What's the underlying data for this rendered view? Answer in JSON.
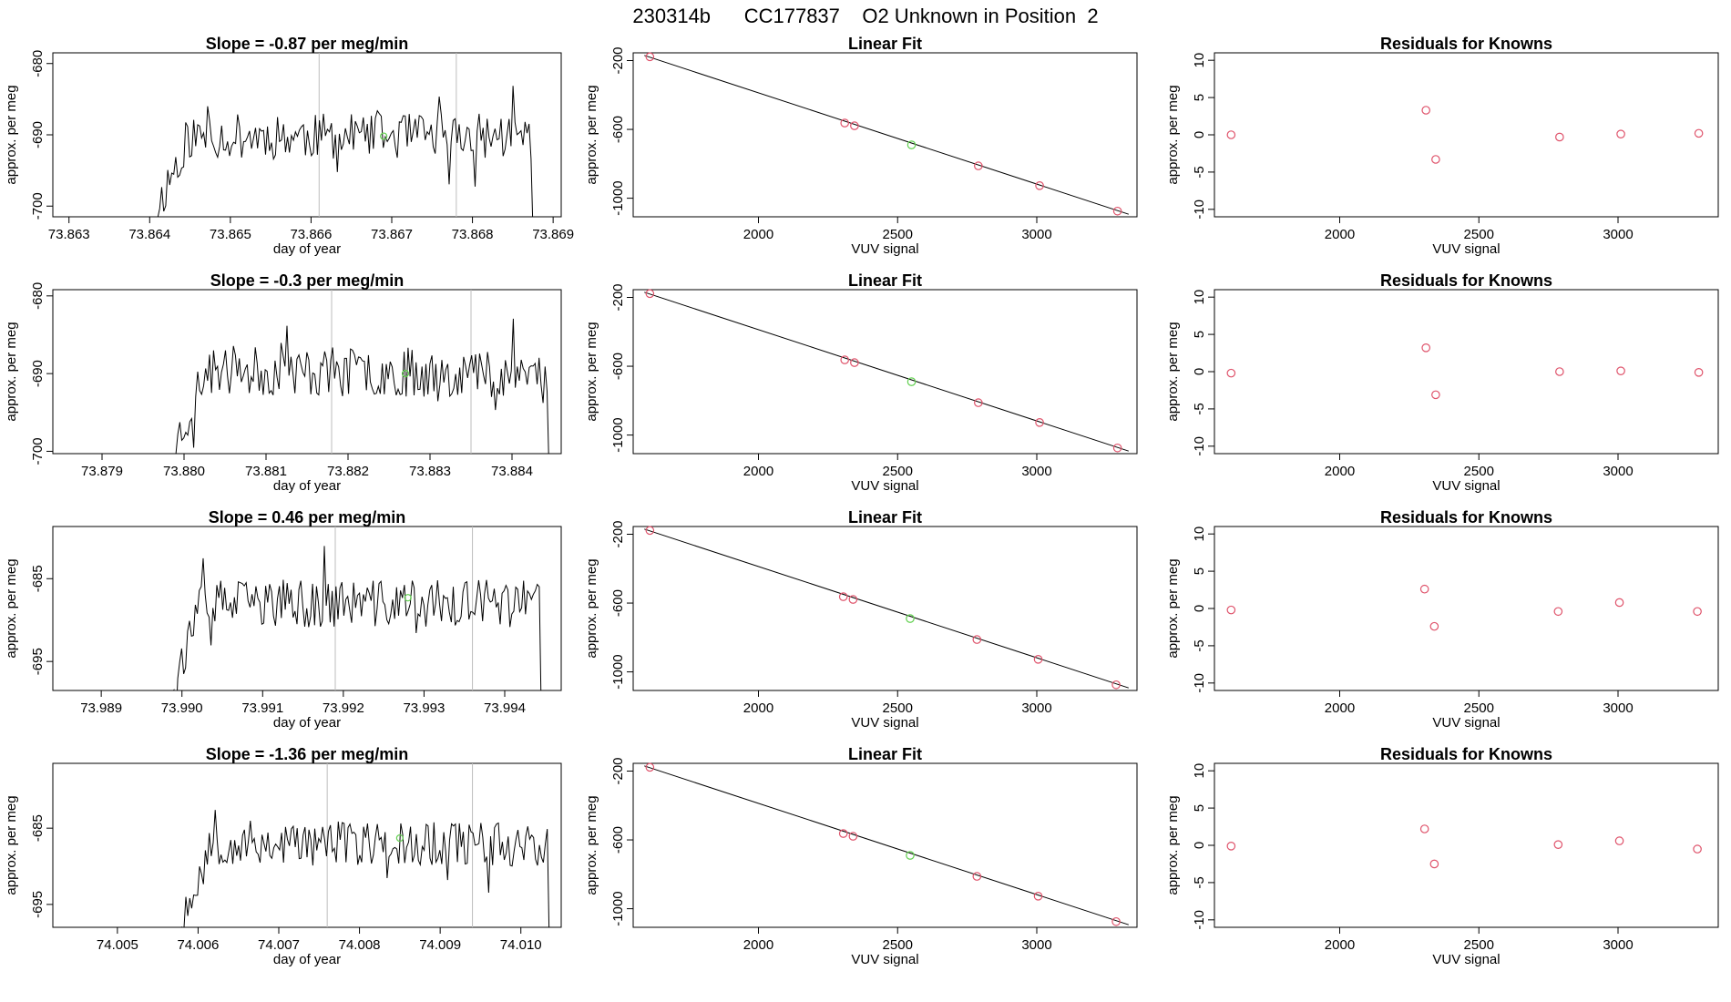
{
  "page": {
    "title": "230314b      CC177837    O2 Unknown in Position  2"
  },
  "colors": {
    "axis": "#000000",
    "line": "#000000",
    "vline": "#bebebe",
    "known_point": "#df536b",
    "unknown_point": "#61d04f"
  },
  "chart_data": [
    {
      "type": "line",
      "panel": "time-series-1",
      "title": "Slope =  -0.87  per meg/min",
      "xlabel": "day of year",
      "ylabel": "approx. per meg",
      "xlim": [
        73.8628,
        73.8691
      ],
      "ylim": [
        -701.5,
        -678.5
      ],
      "xticks": [
        73.863,
        73.864,
        73.865,
        73.866,
        73.867,
        73.868,
        73.869
      ],
      "xtick_labels": [
        "73.863",
        "73.864",
        "73.865",
        "73.866",
        "73.867",
        "73.868",
        "73.869"
      ],
      "yticks": [
        -680,
        -690,
        -700
      ],
      "ytick_labels": [
        "-680",
        "-690",
        "-700"
      ],
      "start": 73.8641,
      "end": 73.8688,
      "base": -690.2,
      "amp": 3.2,
      "seed": 11,
      "vlines": [
        73.8661,
        73.8678
      ],
      "marker": {
        "x": 73.8669,
        "y": -690.2
      }
    },
    {
      "type": "scatter",
      "panel": "linear-fit-1",
      "title": "Linear Fit",
      "xlabel": "VUV signal",
      "ylabel": "approx. per meg",
      "xlim": [
        1550,
        3360
      ],
      "ylim": [
        -1108,
        -155
      ],
      "xticks": [
        2000,
        2500,
        3000
      ],
      "xtick_labels": [
        "2000",
        "2500",
        "3000"
      ],
      "yticks": [
        -200,
        -600,
        -1000
      ],
      "ytick_labels": [
        "-200",
        "-600",
        "-1000"
      ],
      "fit_line": [
        [
          1590,
          -170
        ],
        [
          3330,
          -1093
        ]
      ],
      "known_points": [
        [
          1610,
          -178
        ],
        [
          2310,
          -563
        ],
        [
          2345,
          -579
        ],
        [
          2790,
          -812
        ],
        [
          3010,
          -927
        ],
        [
          3290,
          -1075
        ]
      ],
      "unknown_point": [
        2550,
        -690
      ]
    },
    {
      "type": "scatter",
      "panel": "residuals-1",
      "title": "Residuals for Knowns",
      "xlabel": "VUV signal",
      "ylabel": "approx. per meg",
      "xlim": [
        1550,
        3360
      ],
      "ylim": [
        -11,
        11
      ],
      "xticks": [
        2000,
        2500,
        3000
      ],
      "xtick_labels": [
        "2000",
        "2500",
        "3000"
      ],
      "yticks": [
        10,
        5,
        0,
        -5,
        -10
      ],
      "ytick_labels": [
        "10",
        "5",
        "0",
        "-5",
        "-10"
      ],
      "points": [
        [
          1610,
          0.0
        ],
        [
          2310,
          3.3
        ],
        [
          2345,
          -3.3
        ],
        [
          2790,
          -0.3
        ],
        [
          3010,
          0.1
        ],
        [
          3290,
          0.2
        ]
      ]
    },
    {
      "type": "line",
      "panel": "time-series-2",
      "title": "Slope =  -0.3  per meg/min",
      "xlabel": "day of year",
      "ylabel": "approx. per meg",
      "xlim": [
        73.8784,
        73.8846
      ],
      "ylim": [
        -700.3,
        -679.2
      ],
      "xticks": [
        73.879,
        73.88,
        73.881,
        73.882,
        73.883,
        73.884
      ],
      "xtick_labels": [
        "73.879",
        "73.880",
        "73.881",
        "73.882",
        "73.883",
        "73.884"
      ],
      "yticks": [
        -680,
        -690,
        -700
      ],
      "ytick_labels": [
        "-680",
        "-690",
        "-700"
      ],
      "start": 73.8799,
      "end": 73.8845,
      "base": -689.8,
      "amp": 3.2,
      "seed": 23,
      "vlines": [
        73.8818,
        73.8835
      ],
      "marker": {
        "x": 73.8827,
        "y": -690.0
      }
    },
    {
      "type": "scatter",
      "panel": "linear-fit-2",
      "title": "Linear Fit",
      "xlabel": "VUV signal",
      "ylabel": "approx. per meg",
      "xlim": [
        1550,
        3360
      ],
      "ylim": [
        -1108,
        -155
      ],
      "xticks": [
        2000,
        2500,
        3000
      ],
      "xtick_labels": [
        "2000",
        "2500",
        "3000"
      ],
      "yticks": [
        -200,
        -600,
        -1000
      ],
      "ytick_labels": [
        "-200",
        "-600",
        "-1000"
      ],
      "fit_line": [
        [
          1590,
          -170
        ],
        [
          3330,
          -1093
        ]
      ],
      "known_points": [
        [
          1610,
          -178
        ],
        [
          2310,
          -563
        ],
        [
          2345,
          -579
        ],
        [
          2790,
          -812
        ],
        [
          3010,
          -927
        ],
        [
          3290,
          -1075
        ]
      ],
      "unknown_point": [
        2550,
        -690
      ]
    },
    {
      "type": "scatter",
      "panel": "residuals-2",
      "title": "Residuals for Knowns",
      "xlabel": "VUV signal",
      "ylabel": "approx. per meg",
      "xlim": [
        1550,
        3360
      ],
      "ylim": [
        -11,
        11
      ],
      "xticks": [
        2000,
        2500,
        3000
      ],
      "xtick_labels": [
        "2000",
        "2500",
        "3000"
      ],
      "yticks": [
        10,
        5,
        0,
        -5,
        -10
      ],
      "ytick_labels": [
        "10",
        "5",
        "0",
        "-5",
        "-10"
      ],
      "points": [
        [
          1610,
          -0.2
        ],
        [
          2310,
          3.2
        ],
        [
          2345,
          -3.1
        ],
        [
          2790,
          0.0
        ],
        [
          3010,
          0.1
        ],
        [
          3290,
          -0.1
        ]
      ]
    },
    {
      "type": "line",
      "panel": "time-series-3",
      "title": "Slope =  0.46  per meg/min",
      "xlabel": "day of year",
      "ylabel": "approx. per meg",
      "xlim": [
        73.9884,
        73.9947
      ],
      "ylim": [
        -698.5,
        -678.7
      ],
      "xticks": [
        73.989,
        73.99,
        73.991,
        73.992,
        73.993,
        73.994
      ],
      "xtick_labels": [
        "73.989",
        "73.990",
        "73.991",
        "73.992",
        "73.993",
        "73.994"
      ],
      "yticks": [
        -685,
        -695
      ],
      "ytick_labels": [
        "-685",
        "-695"
      ],
      "start": 73.9899,
      "end": 73.9945,
      "base": -688.0,
      "amp": 2.9,
      "seed": 37,
      "vlines": [
        73.9919,
        73.9936
      ],
      "marker": {
        "x": 73.9928,
        "y": -687.3
      }
    },
    {
      "type": "scatter",
      "panel": "linear-fit-3",
      "title": "Linear Fit",
      "xlabel": "VUV signal",
      "ylabel": "approx. per meg",
      "xlim": [
        1550,
        3360
      ],
      "ylim": [
        -1108,
        -155
      ],
      "xticks": [
        2000,
        2500,
        3000
      ],
      "xtick_labels": [
        "2000",
        "2500",
        "3000"
      ],
      "yticks": [
        -200,
        -600,
        -1000
      ],
      "ytick_labels": [
        "-200",
        "-600",
        "-1000"
      ],
      "fit_line": [
        [
          1590,
          -170
        ],
        [
          3330,
          -1093
        ]
      ],
      "known_points": [
        [
          1610,
          -178
        ],
        [
          2305,
          -563
        ],
        [
          2340,
          -579
        ],
        [
          2785,
          -812
        ],
        [
          3005,
          -927
        ],
        [
          3285,
          -1075
        ]
      ],
      "unknown_point": [
        2545,
        -690
      ]
    },
    {
      "type": "scatter",
      "panel": "residuals-3",
      "title": "Residuals for Knowns",
      "xlabel": "VUV signal",
      "ylabel": "approx. per meg",
      "xlim": [
        1550,
        3360
      ],
      "ylim": [
        -11,
        11
      ],
      "xticks": [
        2000,
        2500,
        3000
      ],
      "xtick_labels": [
        "2000",
        "2500",
        "3000"
      ],
      "yticks": [
        10,
        5,
        0,
        -5,
        -10
      ],
      "ytick_labels": [
        "10",
        "5",
        "0",
        "-5",
        "-10"
      ],
      "points": [
        [
          1610,
          -0.2
        ],
        [
          2305,
          2.6
        ],
        [
          2340,
          -2.4
        ],
        [
          2785,
          -0.4
        ],
        [
          3005,
          0.8
        ],
        [
          3285,
          -0.4
        ]
      ]
    },
    {
      "type": "line",
      "panel": "time-series-4",
      "title": "Slope =  -1.36  per meg/min",
      "xlabel": "day of year",
      "ylabel": "approx. per meg",
      "xlim": [
        74.0042,
        74.0105
      ],
      "ylim": [
        -698.0,
        -676.5
      ],
      "xticks": [
        74.005,
        74.006,
        74.007,
        74.008,
        74.009,
        74.01
      ],
      "xtick_labels": [
        "74.005",
        "74.006",
        "74.007",
        "74.008",
        "74.009",
        "74.010"
      ],
      "yticks": [
        -685,
        -695
      ],
      "ytick_labels": [
        "-685",
        "-695"
      ],
      "start": 74.0058,
      "end": 74.0104,
      "base": -687.0,
      "amp": 3.0,
      "seed": 53,
      "vlines": [
        74.0076,
        74.0094
      ],
      "marker": {
        "x": 74.0085,
        "y": -686.3
      }
    },
    {
      "type": "scatter",
      "panel": "linear-fit-4",
      "title": "Linear Fit",
      "xlabel": "VUV signal",
      "ylabel": "approx. per meg",
      "xlim": [
        1550,
        3360
      ],
      "ylim": [
        -1108,
        -155
      ],
      "xticks": [
        2000,
        2500,
        3000
      ],
      "xtick_labels": [
        "2000",
        "2500",
        "3000"
      ],
      "yticks": [
        -200,
        -600,
        -1000
      ],
      "ytick_labels": [
        "-200",
        "-600",
        "-1000"
      ],
      "fit_line": [
        [
          1590,
          -170
        ],
        [
          3330,
          -1093
        ]
      ],
      "known_points": [
        [
          1610,
          -178
        ],
        [
          2305,
          -563
        ],
        [
          2340,
          -579
        ],
        [
          2785,
          -812
        ],
        [
          3005,
          -927
        ],
        [
          3285,
          -1075
        ]
      ],
      "unknown_point": [
        2545,
        -690
      ]
    },
    {
      "type": "scatter",
      "panel": "residuals-4",
      "title": "Residuals for Knowns",
      "xlabel": "VUV signal",
      "ylabel": "approx. per meg",
      "xlim": [
        1550,
        3360
      ],
      "ylim": [
        -11,
        11
      ],
      "xticks": [
        2000,
        2500,
        3000
      ],
      "xtick_labels": [
        "2000",
        "2500",
        "3000"
      ],
      "yticks": [
        10,
        5,
        0,
        -5,
        -10
      ],
      "ytick_labels": [
        "10",
        "5",
        "0",
        "-5",
        "-10"
      ],
      "points": [
        [
          1610,
          -0.1
        ],
        [
          2305,
          2.2
        ],
        [
          2340,
          -2.5
        ],
        [
          2785,
          0.1
        ],
        [
          3005,
          0.6
        ],
        [
          3285,
          -0.5
        ]
      ]
    }
  ]
}
